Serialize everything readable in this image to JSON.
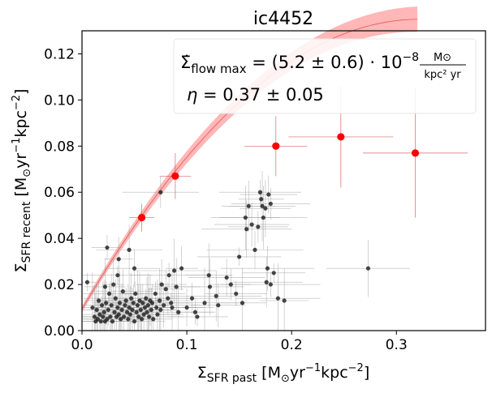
{
  "chart_data": {
    "type": "scatter",
    "title": "ic4452",
    "xlabel": {
      "symbol": "Σ",
      "sub": "SFR past",
      "units_open": "  [M",
      "units_sun": "⊙",
      "units_yr": "yr",
      "units_exp1": "−1",
      "units_kpc": "kpc",
      "units_exp2": "−2",
      "units_close": "]"
    },
    "ylabel": {
      "symbol": "Σ",
      "sub": "SFR recent",
      "units_open": "  [M",
      "units_sun": "⊙",
      "units_yr": "yr",
      "units_exp1": "−1",
      "units_kpc": "kpc",
      "units_exp2": "−2",
      "units_close": "]"
    },
    "xlim": [
      0.0,
      0.385
    ],
    "ylim": [
      0.0,
      0.13
    ],
    "xticks": [
      0.0,
      0.1,
      0.2,
      0.3
    ],
    "xtick_labels": [
      "0.0",
      "0.1",
      "0.2",
      "0.3"
    ],
    "yticks": [
      0.0,
      0.02,
      0.04,
      0.06,
      0.08,
      0.1,
      0.12
    ],
    "ytick_labels": [
      "0.00",
      "0.02",
      "0.04",
      "0.06",
      "0.08",
      "0.10",
      "0.12"
    ],
    "annotation": {
      "line1_sym": "Σ̇",
      "line1_sub": "flow max",
      "line1_eq": " = (5.2 ± 0.6) · 10",
      "line1_exp": "−8",
      "line1_frac_num": "M⊙",
      "line1_frac_den": "kpc² yr",
      "line2_sym": "η",
      "line2_eq": " = 0.37 ± 0.05"
    },
    "model": {
      "name": "fit",
      "A": 0.0093,
      "B": 0.78,
      "C": 1.21,
      "band_width_max": 0.0055,
      "x_range": [
        0.0,
        0.32
      ],
      "color": "#ff9999"
    },
    "binned_series": {
      "name": "binned",
      "color": "#ff0000",
      "points": [
        {
          "x": 0.057,
          "y": 0.049,
          "xerr": 0.012,
          "yerr": 0.006
        },
        {
          "x": 0.089,
          "y": 0.067,
          "xerr": 0.015,
          "yerr": 0.01
        },
        {
          "x": 0.185,
          "y": 0.08,
          "xerr": 0.03,
          "yerr": 0.013
        },
        {
          "x": 0.247,
          "y": 0.084,
          "xerr": 0.05,
          "yerr": 0.022
        },
        {
          "x": 0.318,
          "y": 0.077,
          "xerr": 0.05,
          "yerr": 0.028
        }
      ]
    },
    "scatter_series": {
      "name": "pixels",
      "color": "#1a1a1a",
      "points": [
        {
          "x": 0.005,
          "y": 0.021
        },
        {
          "x": 0.01,
          "y": 0.01
        },
        {
          "x": 0.012,
          "y": 0.006
        },
        {
          "x": 0.013,
          "y": 0.004
        },
        {
          "x": 0.014,
          "y": 0.009
        },
        {
          "x": 0.015,
          "y": 0.005
        },
        {
          "x": 0.016,
          "y": 0.013
        },
        {
          "x": 0.017,
          "y": 0.007
        },
        {
          "x": 0.018,
          "y": 0.004
        },
        {
          "x": 0.019,
          "y": 0.011
        },
        {
          "x": 0.02,
          "y": 0.006
        },
        {
          "x": 0.021,
          "y": 0.008
        },
        {
          "x": 0.022,
          "y": 0.019
        },
        {
          "x": 0.022,
          "y": 0.004
        },
        {
          "x": 0.023,
          "y": 0.012
        },
        {
          "x": 0.024,
          "y": 0.005
        },
        {
          "x": 0.025,
          "y": 0.009
        },
        {
          "x": 0.024,
          "y": 0.036
        },
        {
          "x": 0.026,
          "y": 0.016
        },
        {
          "x": 0.027,
          "y": 0.006
        },
        {
          "x": 0.028,
          "y": 0.011
        },
        {
          "x": 0.029,
          "y": 0.004
        },
        {
          "x": 0.03,
          "y": 0.02
        },
        {
          "x": 0.031,
          "y": 0.008
        },
        {
          "x": 0.032,
          "y": 0.014
        },
        {
          "x": 0.033,
          "y": 0.006
        },
        {
          "x": 0.034,
          "y": 0.01
        },
        {
          "x": 0.034,
          "y": 0.024
        },
        {
          "x": 0.035,
          "y": 0.007
        },
        {
          "x": 0.036,
          "y": 0.012
        },
        {
          "x": 0.037,
          "y": 0.005
        },
        {
          "x": 0.038,
          "y": 0.009
        },
        {
          "x": 0.039,
          "y": 0.017
        },
        {
          "x": 0.04,
          "y": 0.006
        },
        {
          "x": 0.041,
          "y": 0.011
        },
        {
          "x": 0.042,
          "y": 0.013
        },
        {
          "x": 0.043,
          "y": 0.008
        },
        {
          "x": 0.044,
          "y": 0.005
        },
        {
          "x": 0.045,
          "y": 0.01
        },
        {
          "x": 0.046,
          "y": 0.007
        },
        {
          "x": 0.047,
          "y": 0.014
        },
        {
          "x": 0.048,
          "y": 0.009
        },
        {
          "x": 0.049,
          "y": 0.012
        },
        {
          "x": 0.05,
          "y": 0.004
        },
        {
          "x": 0.051,
          "y": 0.016
        },
        {
          "x": 0.052,
          "y": 0.008
        },
        {
          "x": 0.053,
          "y": 0.011
        },
        {
          "x": 0.054,
          "y": 0.006
        },
        {
          "x": 0.055,
          "y": 0.013
        },
        {
          "x": 0.056,
          "y": 0.009
        },
        {
          "x": 0.057,
          "y": 0.005
        },
        {
          "x": 0.058,
          "y": 0.012
        },
        {
          "x": 0.059,
          "y": 0.007
        },
        {
          "x": 0.06,
          "y": 0.01
        },
        {
          "x": 0.061,
          "y": 0.014
        },
        {
          "x": 0.062,
          "y": 0.008
        },
        {
          "x": 0.063,
          "y": 0.011
        },
        {
          "x": 0.064,
          "y": 0.006
        },
        {
          "x": 0.065,
          "y": 0.013
        },
        {
          "x": 0.066,
          "y": 0.009
        },
        {
          "x": 0.067,
          "y": 0.012
        },
        {
          "x": 0.068,
          "y": 0.005
        },
        {
          "x": 0.07,
          "y": 0.016
        },
        {
          "x": 0.071,
          "y": 0.01
        },
        {
          "x": 0.072,
          "y": 0.007
        },
        {
          "x": 0.074,
          "y": 0.013
        },
        {
          "x": 0.075,
          "y": 0.009
        },
        {
          "x": 0.076,
          "y": 0.02
        },
        {
          "x": 0.078,
          "y": 0.011
        },
        {
          "x": 0.08,
          "y": 0.018
        },
        {
          "x": 0.082,
          "y": 0.014
        },
        {
          "x": 0.083,
          "y": 0.024
        },
        {
          "x": 0.085,
          "y": 0.012
        },
        {
          "x": 0.086,
          "y": 0.01
        },
        {
          "x": 0.088,
          "y": 0.026
        },
        {
          "x": 0.09,
          "y": 0.019
        },
        {
          "x": 0.092,
          "y": 0.008
        },
        {
          "x": 0.095,
          "y": 0.027
        },
        {
          "x": 0.1,
          "y": 0.01
        },
        {
          "x": 0.105,
          "y": 0.014
        },
        {
          "x": 0.108,
          "y": 0.008
        },
        {
          "x": 0.11,
          "y": 0.006
        },
        {
          "x": 0.117,
          "y": 0.012
        },
        {
          "x": 0.121,
          "y": 0.024
        },
        {
          "x": 0.122,
          "y": 0.019
        },
        {
          "x": 0.128,
          "y": 0.015
        },
        {
          "x": 0.13,
          "y": 0.011
        },
        {
          "x": 0.138,
          "y": 0.023
        },
        {
          "x": 0.142,
          "y": 0.02
        },
        {
          "x": 0.147,
          "y": 0.016
        },
        {
          "x": 0.15,
          "y": 0.032
        },
        {
          "x": 0.153,
          "y": 0.012
        },
        {
          "x": 0.156,
          "y": 0.049
        },
        {
          "x": 0.157,
          "y": 0.044
        },
        {
          "x": 0.159,
          "y": 0.054
        },
        {
          "x": 0.162,
          "y": 0.046
        },
        {
          "x": 0.165,
          "y": 0.035
        },
        {
          "x": 0.168,
          "y": 0.045
        },
        {
          "x": 0.17,
          "y": 0.06
        },
        {
          "x": 0.171,
          "y": 0.057
        },
        {
          "x": 0.172,
          "y": 0.054
        },
        {
          "x": 0.173,
          "y": 0.049
        },
        {
          "x": 0.175,
          "y": 0.053
        },
        {
          "x": 0.176,
          "y": 0.021
        },
        {
          "x": 0.177,
          "y": 0.027
        },
        {
          "x": 0.178,
          "y": 0.059
        },
        {
          "x": 0.18,
          "y": 0.055
        },
        {
          "x": 0.18,
          "y": 0.02
        },
        {
          "x": 0.183,
          "y": 0.025
        },
        {
          "x": 0.187,
          "y": 0.014
        },
        {
          "x": 0.193,
          "y": 0.013
        },
        {
          "x": 0.273,
          "y": 0.027
        },
        {
          "x": 0.045,
          "y": 0.035
        },
        {
          "x": 0.035,
          "y": 0.031
        },
        {
          "x": 0.05,
          "y": 0.027
        },
        {
          "x": 0.075,
          "y": 0.06
        }
      ]
    }
  }
}
